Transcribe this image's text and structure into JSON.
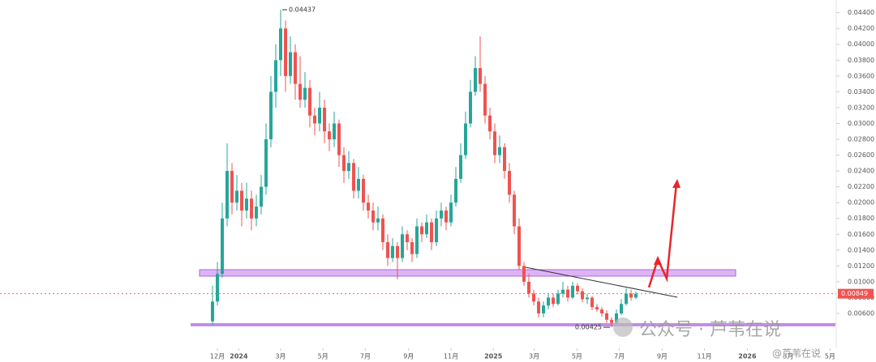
{
  "chart_data": {
    "type": "candlestick",
    "x": [
      -1,
      0,
      1,
      2,
      3,
      4,
      5,
      6,
      7,
      8,
      9,
      10,
      11,
      12,
      13,
      14,
      15,
      16,
      17,
      18,
      19,
      20,
      21,
      22,
      23,
      24,
      25,
      26,
      27,
      28,
      29,
      30,
      31,
      32,
      33,
      34,
      35,
      36,
      37,
      38,
      39,
      40,
      41,
      42,
      43,
      44,
      45,
      46,
      47,
      48,
      49,
      50,
      51,
      52,
      53,
      54,
      55,
      56,
      57,
      58,
      59,
      60,
      61,
      62,
      63,
      64,
      65,
      66,
      67,
      68,
      69,
      70,
      71,
      72,
      73,
      74,
      75,
      76,
      77,
      78,
      79,
      80,
      81,
      82,
      83,
      84,
      85,
      86
    ],
    "open": [
      0.005,
      0.0075,
      0.011,
      0.018,
      0.024,
      0.02,
      0.0215,
      0.019,
      0.0205,
      0.018,
      0.0195,
      0.022,
      0.028,
      0.034,
      0.038,
      0.042,
      0.036,
      0.039,
      0.035,
      0.033,
      0.0345,
      0.031,
      0.03,
      0.032,
      0.029,
      0.028,
      0.03,
      0.026,
      0.024,
      0.025,
      0.0215,
      0.023,
      0.02,
      0.019,
      0.0175,
      0.018,
      0.015,
      0.013,
      0.0145,
      0.013,
      0.016,
      0.015,
      0.0135,
      0.017,
      0.016,
      0.0175,
      0.015,
      0.018,
      0.019,
      0.0175,
      0.02,
      0.023,
      0.026,
      0.03,
      0.034,
      0.037,
      0.035,
      0.031,
      0.029,
      0.026,
      0.027,
      0.024,
      0.021,
      0.017,
      0.012,
      0.01,
      0.0085,
      0.0075,
      0.006,
      0.007,
      0.008,
      0.0072,
      0.0085,
      0.009,
      0.008,
      0.0095,
      0.0088,
      0.0078,
      0.008,
      0.0068,
      0.0065,
      0.006,
      0.0052,
      0.0048,
      0.006,
      0.0072,
      0.0085,
      0.008
    ],
    "high": [
      0.0095,
      0.0125,
      0.02,
      0.0275,
      0.025,
      0.0235,
      0.0225,
      0.0225,
      0.0215,
      0.021,
      0.0235,
      0.03,
      0.036,
      0.04,
      0.04437,
      0.043,
      0.041,
      0.04,
      0.0385,
      0.0365,
      0.0355,
      0.032,
      0.034,
      0.033,
      0.03,
      0.0315,
      0.0305,
      0.027,
      0.0265,
      0.0255,
      0.0245,
      0.0235,
      0.021,
      0.02,
      0.0195,
      0.0185,
      0.016,
      0.0155,
      0.015,
      0.017,
      0.0165,
      0.0155,
      0.018,
      0.0175,
      0.0185,
      0.018,
      0.019,
      0.02,
      0.0195,
      0.021,
      0.0245,
      0.0275,
      0.0315,
      0.0355,
      0.0385,
      0.041,
      0.036,
      0.032,
      0.03,
      0.0285,
      0.0275,
      0.025,
      0.0215,
      0.018,
      0.0125,
      0.011,
      0.009,
      0.008,
      0.0075,
      0.0085,
      0.0085,
      0.009,
      0.01,
      0.0095,
      0.01,
      0.0098,
      0.0092,
      0.0085,
      0.0082,
      0.0072,
      0.0068,
      0.0064,
      0.0055,
      0.0065,
      0.0078,
      0.0092,
      0.009,
      0.0088
    ],
    "low": [
      0.0045,
      0.007,
      0.0105,
      0.017,
      0.0185,
      0.019,
      0.017,
      0.018,
      0.0165,
      0.017,
      0.0185,
      0.021,
      0.027,
      0.032,
      0.036,
      0.034,
      0.035,
      0.033,
      0.032,
      0.032,
      0.0295,
      0.0285,
      0.029,
      0.0275,
      0.0265,
      0.027,
      0.0245,
      0.0225,
      0.023,
      0.0205,
      0.0205,
      0.019,
      0.018,
      0.0165,
      0.0165,
      0.014,
      0.012,
      0.0125,
      0.0103,
      0.0125,
      0.014,
      0.0125,
      0.013,
      0.015,
      0.0155,
      0.014,
      0.0145,
      0.017,
      0.0165,
      0.017,
      0.0195,
      0.0225,
      0.0255,
      0.0295,
      0.0335,
      0.034,
      0.03,
      0.028,
      0.025,
      0.025,
      0.023,
      0.02,
      0.016,
      0.0115,
      0.0095,
      0.008,
      0.007,
      0.0055,
      0.0055,
      0.0065,
      0.0068,
      0.007,
      0.008,
      0.0075,
      0.0078,
      0.0084,
      0.0074,
      0.0072,
      0.0064,
      0.0062,
      0.0056,
      0.0048,
      0.00425,
      0.0046,
      0.0058,
      0.007,
      0.0076,
      0.0078
    ],
    "close": [
      0.0075,
      0.011,
      0.018,
      0.024,
      0.02,
      0.0215,
      0.019,
      0.0205,
      0.018,
      0.0195,
      0.022,
      0.028,
      0.034,
      0.038,
      0.042,
      0.036,
      0.039,
      0.035,
      0.033,
      0.0345,
      0.031,
      0.03,
      0.032,
      0.029,
      0.028,
      0.03,
      0.026,
      0.024,
      0.025,
      0.0215,
      0.023,
      0.02,
      0.019,
      0.0175,
      0.018,
      0.015,
      0.013,
      0.0145,
      0.013,
      0.016,
      0.015,
      0.0135,
      0.017,
      0.016,
      0.0175,
      0.015,
      0.018,
      0.019,
      0.0175,
      0.02,
      0.023,
      0.026,
      0.03,
      0.034,
      0.037,
      0.035,
      0.031,
      0.029,
      0.026,
      0.027,
      0.024,
      0.021,
      0.017,
      0.012,
      0.01,
      0.0085,
      0.0075,
      0.006,
      0.007,
      0.008,
      0.0072,
      0.0085,
      0.009,
      0.008,
      0.0095,
      0.0088,
      0.0078,
      0.008,
      0.0068,
      0.0065,
      0.006,
      0.0052,
      0.0048,
      0.006,
      0.0072,
      0.0085,
      0.008,
      0.00849
    ],
    "up_color": "#26a69a",
    "down_color": "#ef5350",
    "xlim": [
      -44.67,
      127
    ],
    "xticks": [
      {
        "value": 0,
        "label": "12月"
      },
      {
        "value": 4.4,
        "label": "2024"
      },
      {
        "value": 13,
        "label": "3月"
      },
      {
        "value": 21.7,
        "label": "5月"
      },
      {
        "value": 30.4,
        "label": "7月"
      },
      {
        "value": 39.3,
        "label": "9月"
      },
      {
        "value": 48,
        "label": "11月"
      },
      {
        "value": 56.7,
        "label": "2025"
      },
      {
        "value": 65.1,
        "label": "3月"
      },
      {
        "value": 73.9,
        "label": "5月"
      },
      {
        "value": 82.6,
        "label": "7月"
      },
      {
        "value": 91.4,
        "label": "9月"
      },
      {
        "value": 100.1,
        "label": "11月"
      },
      {
        "value": 108.9,
        "label": "2026"
      },
      {
        "value": 117.3,
        "label": "3月"
      },
      {
        "value": 125.9,
        "label": "5月"
      }
    ],
    "ylim": [
      0.0016,
      0.0456
    ],
    "yticks": [
      {
        "value": 0.006,
        "label": "0.00600"
      },
      {
        "value": 0.008,
        "label": "0.00800"
      },
      {
        "value": 0.01,
        "label": "0.01000"
      },
      {
        "value": 0.012,
        "label": "0.01200"
      },
      {
        "value": 0.014,
        "label": "0.01400"
      },
      {
        "value": 0.016,
        "label": "0.01600"
      },
      {
        "value": 0.018,
        "label": "0.01800"
      },
      {
        "value": 0.02,
        "label": "0.02000"
      },
      {
        "value": 0.022,
        "label": "0.02200"
      },
      {
        "value": 0.024,
        "label": "0.02400"
      },
      {
        "value": 0.026,
        "label": "0.02600"
      },
      {
        "value": 0.028,
        "label": "0.02800"
      },
      {
        "value": 0.03,
        "label": "0.03000"
      },
      {
        "value": 0.032,
        "label": "0.03200"
      },
      {
        "value": 0.034,
        "label": "0.03400"
      },
      {
        "value": 0.036,
        "label": "0.03600"
      },
      {
        "value": 0.038,
        "label": "0.03800"
      },
      {
        "value": 0.04,
        "label": "0.04000"
      },
      {
        "value": 0.042,
        "label": "0.04200"
      },
      {
        "value": 0.044,
        "label": "0.04400"
      }
    ],
    "watermark": "公众号 · 芦苇在说",
    "watermark_handle": "@芦苇在说"
  }
}
